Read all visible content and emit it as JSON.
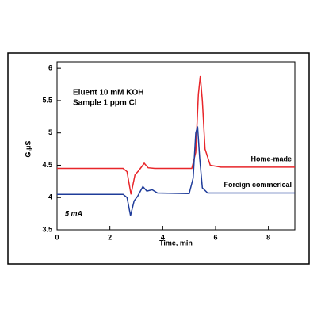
{
  "chart_data": {
    "type": "line",
    "xlabel": "Time, min",
    "ylabel": "G,μS",
    "annotations": [
      "Eluent   10 mM KOH",
      "Sample 1 ppm Cl⁻",
      "5 mA"
    ],
    "xlim": [
      0,
      9
    ],
    "ylim": [
      3.5,
      6.1
    ],
    "xticks": [
      0,
      2,
      4,
      6,
      8
    ],
    "yticks": [
      3.5,
      4,
      4.5,
      5,
      5.5,
      6
    ],
    "series": [
      {
        "name": "Home-made",
        "color": "#e8262a",
        "x": [
          0,
          2.5,
          2.65,
          2.8,
          2.95,
          3.1,
          3.3,
          3.45,
          3.7,
          5.1,
          5.25,
          5.35,
          5.42,
          5.5,
          5.6,
          5.8,
          6.2,
          9
        ],
        "values": [
          4.45,
          4.45,
          4.4,
          4.05,
          4.35,
          4.42,
          4.53,
          4.46,
          4.45,
          4.45,
          4.7,
          5.6,
          5.88,
          5.5,
          4.75,
          4.5,
          4.47,
          4.47
        ]
      },
      {
        "name": "Foreign commerical",
        "color": "#1f3c9a",
        "x": [
          0,
          2.5,
          2.65,
          2.78,
          2.92,
          3.05,
          3.25,
          3.4,
          3.6,
          3.8,
          5.0,
          5.15,
          5.25,
          5.32,
          5.4,
          5.5,
          5.7,
          9
        ],
        "values": [
          4.05,
          4.05,
          4.0,
          3.72,
          3.95,
          4.02,
          4.17,
          4.1,
          4.12,
          4.07,
          4.06,
          4.3,
          5.0,
          5.1,
          4.6,
          4.15,
          4.07,
          4.07
        ]
      }
    ]
  }
}
